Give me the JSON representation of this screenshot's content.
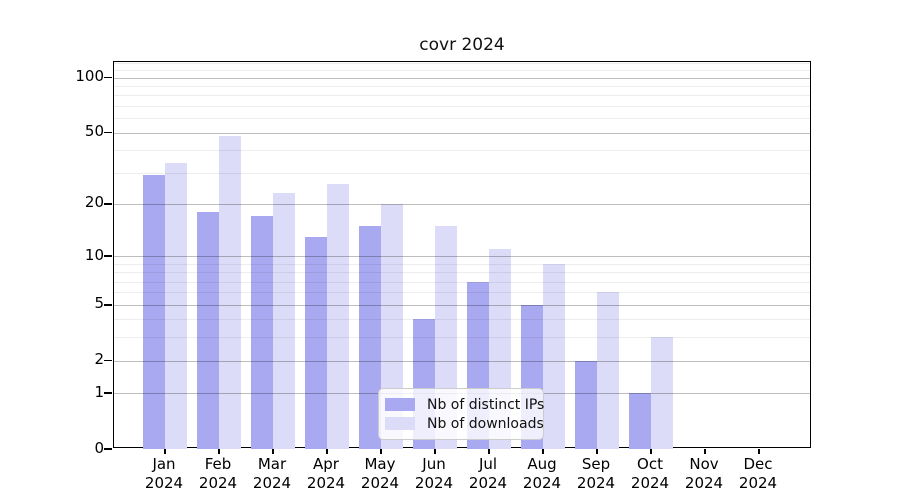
{
  "chart_data": {
    "type": "bar",
    "title": "covr 2024",
    "categories": [
      "Jan",
      "Feb",
      "Mar",
      "Apr",
      "May",
      "Jun",
      "Jul",
      "Aug",
      "Sep",
      "Oct",
      "Nov",
      "Dec"
    ],
    "category_year": "2024",
    "series": [
      {
        "name": "Nb of distinct IPs",
        "color": "#a9a9f1",
        "values": [
          29,
          18,
          17,
          13,
          15,
          4,
          7,
          5,
          2,
          1,
          0,
          0
        ]
      },
      {
        "name": "Nb of downloads",
        "color": "#dcdcf9",
        "values": [
          34,
          48,
          23,
          26,
          20,
          15,
          11,
          9,
          6,
          3,
          0,
          0
        ]
      }
    ],
    "y_axis": {
      "scale": "log1p",
      "ticks": [
        100,
        50,
        20,
        10,
        5,
        2,
        1,
        0
      ],
      "minor_gridlines": [
        120,
        110,
        90,
        80,
        70,
        60,
        40,
        30,
        9,
        8,
        7,
        6,
        4,
        3
      ],
      "range": [
        0,
        125
      ]
    },
    "x_axis": {
      "label_lines": 2
    },
    "legend": {
      "position": "bottom-center"
    },
    "grid": true,
    "colors": {
      "major_grid": "#bdbdbd",
      "minor_grid": "#ededed",
      "axis": "#000000"
    }
  }
}
